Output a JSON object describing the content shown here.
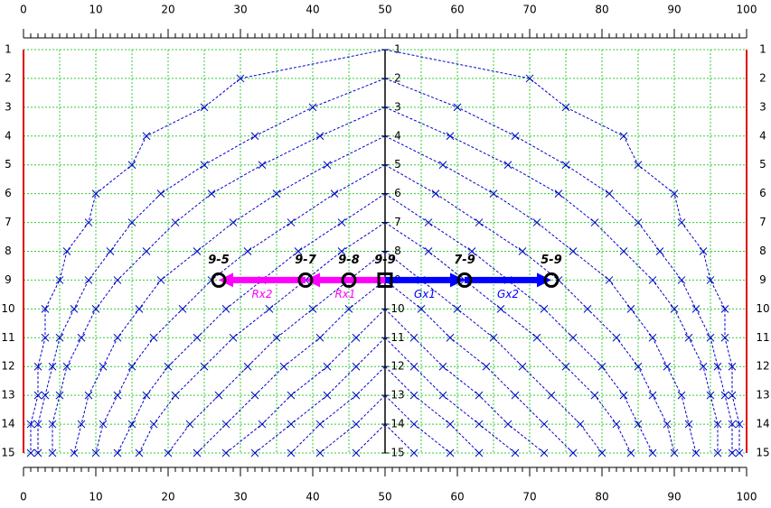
{
  "chart_data": {
    "type": "line",
    "xlim": [
      0,
      100
    ],
    "ylim": [
      1,
      15
    ],
    "xticks": [
      0,
      10,
      20,
      30,
      40,
      50,
      60,
      70,
      80,
      90,
      100
    ],
    "yticks": [
      1,
      2,
      3,
      4,
      5,
      6,
      7,
      8,
      9,
      10,
      11,
      12,
      13,
      14,
      15
    ],
    "xgrid": [
      0,
      5,
      10,
      15,
      20,
      25,
      30,
      35,
      40,
      45,
      50,
      55,
      60,
      65,
      70,
      75,
      80,
      85,
      90,
      95,
      100
    ],
    "grid": true,
    "grid_color": "#33cc33",
    "edge_color": "#dd0000",
    "minor_tick_step": 1,
    "series": [
      {
        "color": "#0000cc",
        "x": [
          50,
          30,
          25,
          17,
          15,
          10,
          9,
          6,
          5,
          3,
          3,
          2,
          2,
          1,
          1
        ]
      },
      {
        "color": "#0000cc",
        "x": [
          50,
          70,
          75,
          83,
          85,
          90,
          91,
          94,
          95,
          97,
          97,
          98,
          98,
          99,
          99
        ]
      },
      {
        "color": "#0000cc",
        "x": [
          null,
          50,
          40,
          32,
          25,
          19,
          15,
          12,
          9,
          7,
          5,
          4,
          3,
          2,
          2
        ]
      },
      {
        "color": "#0000cc",
        "x": [
          null,
          50,
          60,
          68,
          75,
          81,
          85,
          88,
          91,
          93,
          95,
          96,
          97,
          98,
          98
        ]
      },
      {
        "color": "#0000cc",
        "x": [
          null,
          null,
          50,
          41,
          33,
          26,
          21,
          17,
          13,
          10,
          8,
          6,
          5,
          4,
          4
        ]
      },
      {
        "color": "#0000cc",
        "x": [
          null,
          null,
          50,
          59,
          67,
          74,
          79,
          83,
          87,
          90,
          92,
          94,
          95,
          96,
          96
        ]
      },
      {
        "color": "#0000cc",
        "x": [
          null,
          null,
          null,
          50,
          42,
          35,
          29,
          24,
          19,
          16,
          13,
          11,
          9,
          8,
          7
        ]
      },
      {
        "color": "#0000cc",
        "x": [
          null,
          null,
          null,
          50,
          58,
          65,
          71,
          76,
          81,
          84,
          87,
          89,
          91,
          92,
          93
        ]
      },
      {
        "color": "#0000cc",
        "x": [
          null,
          null,
          null,
          null,
          50,
          43,
          37,
          31,
          26,
          22,
          18,
          15,
          13,
          11,
          10
        ]
      },
      {
        "color": "#0000cc",
        "x": [
          null,
          null,
          null,
          null,
          50,
          57,
          63,
          69,
          74,
          78,
          82,
          85,
          87,
          89,
          90
        ]
      },
      {
        "color": "#0000cc",
        "x": [
          null,
          null,
          null,
          null,
          null,
          50,
          44,
          38,
          33,
          28,
          24,
          20,
          17,
          15,
          13
        ]
      },
      {
        "color": "#0000cc",
        "x": [
          null,
          null,
          null,
          null,
          null,
          50,
          56,
          62,
          67,
          72,
          76,
          80,
          83,
          85,
          87
        ]
      },
      {
        "color": "#0000cc",
        "x": [
          null,
          null,
          null,
          null,
          null,
          null,
          50,
          44,
          39,
          34,
          29,
          25,
          21,
          18,
          16
        ]
      },
      {
        "color": "#0000cc",
        "x": [
          null,
          null,
          null,
          null,
          null,
          null,
          50,
          56,
          61,
          66,
          71,
          75,
          79,
          82,
          84
        ]
      },
      {
        "color": "#0000cc",
        "x": [
          null,
          null,
          null,
          null,
          null,
          null,
          null,
          50,
          45,
          40,
          35,
          31,
          27,
          23,
          20
        ]
      },
      {
        "color": "#0000cc",
        "x": [
          null,
          null,
          null,
          null,
          null,
          null,
          null,
          50,
          55,
          60,
          65,
          69,
          73,
          77,
          80
        ]
      },
      {
        "color": "#0000cc",
        "x": [
          null,
          null,
          null,
          null,
          null,
          null,
          null,
          null,
          50,
          45,
          41,
          36,
          32,
          28,
          24
        ]
      },
      {
        "color": "#0000cc",
        "x": [
          null,
          null,
          null,
          null,
          null,
          null,
          null,
          null,
          50,
          55,
          59,
          64,
          68,
          72,
          76
        ]
      },
      {
        "color": "#0000cc",
        "x": [
          null,
          null,
          null,
          null,
          null,
          null,
          null,
          null,
          null,
          50,
          46,
          42,
          37,
          33,
          28
        ]
      },
      {
        "color": "#0000cc",
        "x": [
          null,
          null,
          null,
          null,
          null,
          null,
          null,
          null,
          null,
          50,
          54,
          58,
          63,
          67,
          72
        ]
      },
      {
        "color": "#0000cc",
        "x": [
          null,
          null,
          null,
          null,
          null,
          null,
          null,
          null,
          null,
          null,
          50,
          46,
          42,
          37,
          32
        ]
      },
      {
        "color": "#0000cc",
        "x": [
          null,
          null,
          null,
          null,
          null,
          null,
          null,
          null,
          null,
          null,
          50,
          54,
          58,
          63,
          68
        ]
      },
      {
        "color": "#0000cc",
        "x": [
          null,
          null,
          null,
          null,
          null,
          null,
          null,
          null,
          null,
          null,
          null,
          50,
          46,
          41,
          37
        ]
      },
      {
        "color": "#0000cc",
        "x": [
          null,
          null,
          null,
          null,
          null,
          null,
          null,
          null,
          null,
          null,
          null,
          50,
          54,
          59,
          63
        ]
      },
      {
        "color": "#0000cc",
        "x": [
          null,
          null,
          null,
          null,
          null,
          null,
          null,
          null,
          null,
          null,
          null,
          null,
          50,
          46,
          41
        ]
      },
      {
        "color": "#0000cc",
        "x": [
          null,
          null,
          null,
          null,
          null,
          null,
          null,
          null,
          null,
          null,
          null,
          null,
          50,
          54,
          59
        ]
      },
      {
        "color": "#0000cc",
        "x": [
          null,
          null,
          null,
          null,
          null,
          null,
          null,
          null,
          null,
          null,
          null,
          null,
          null,
          50,
          46
        ]
      },
      {
        "color": "#0000cc",
        "x": [
          null,
          null,
          null,
          null,
          null,
          null,
          null,
          null,
          null,
          null,
          null,
          null,
          null,
          50,
          54
        ]
      }
    ],
    "arrows": [
      {
        "label": "Rx1",
        "color": "#ff00ff",
        "from": 50,
        "to": 39,
        "row": 9
      },
      {
        "label": "Rx2",
        "color": "#ff00ff",
        "from": 39,
        "to": 27,
        "row": 9
      },
      {
        "label": "Gx1",
        "color": "#0000ff",
        "from": 50,
        "to": 61,
        "row": 9
      },
      {
        "label": "Gx2",
        "color": "#0000ff",
        "from": 61,
        "to": 73,
        "row": 9
      }
    ],
    "points": [
      {
        "label": "9-5",
        "x": 27,
        "y": 9,
        "marker": "circle"
      },
      {
        "label": "9-7",
        "x": 39,
        "y": 9,
        "marker": "circle"
      },
      {
        "label": "9-8",
        "x": 45,
        "y": 9,
        "marker": "circle"
      },
      {
        "label": "9-9",
        "x": 50,
        "y": 9,
        "marker": "square"
      },
      {
        "label": "7-9",
        "x": 61,
        "y": 9,
        "marker": "circle"
      },
      {
        "label": "5-9",
        "x": 73,
        "y": 9,
        "marker": "circle"
      }
    ]
  }
}
